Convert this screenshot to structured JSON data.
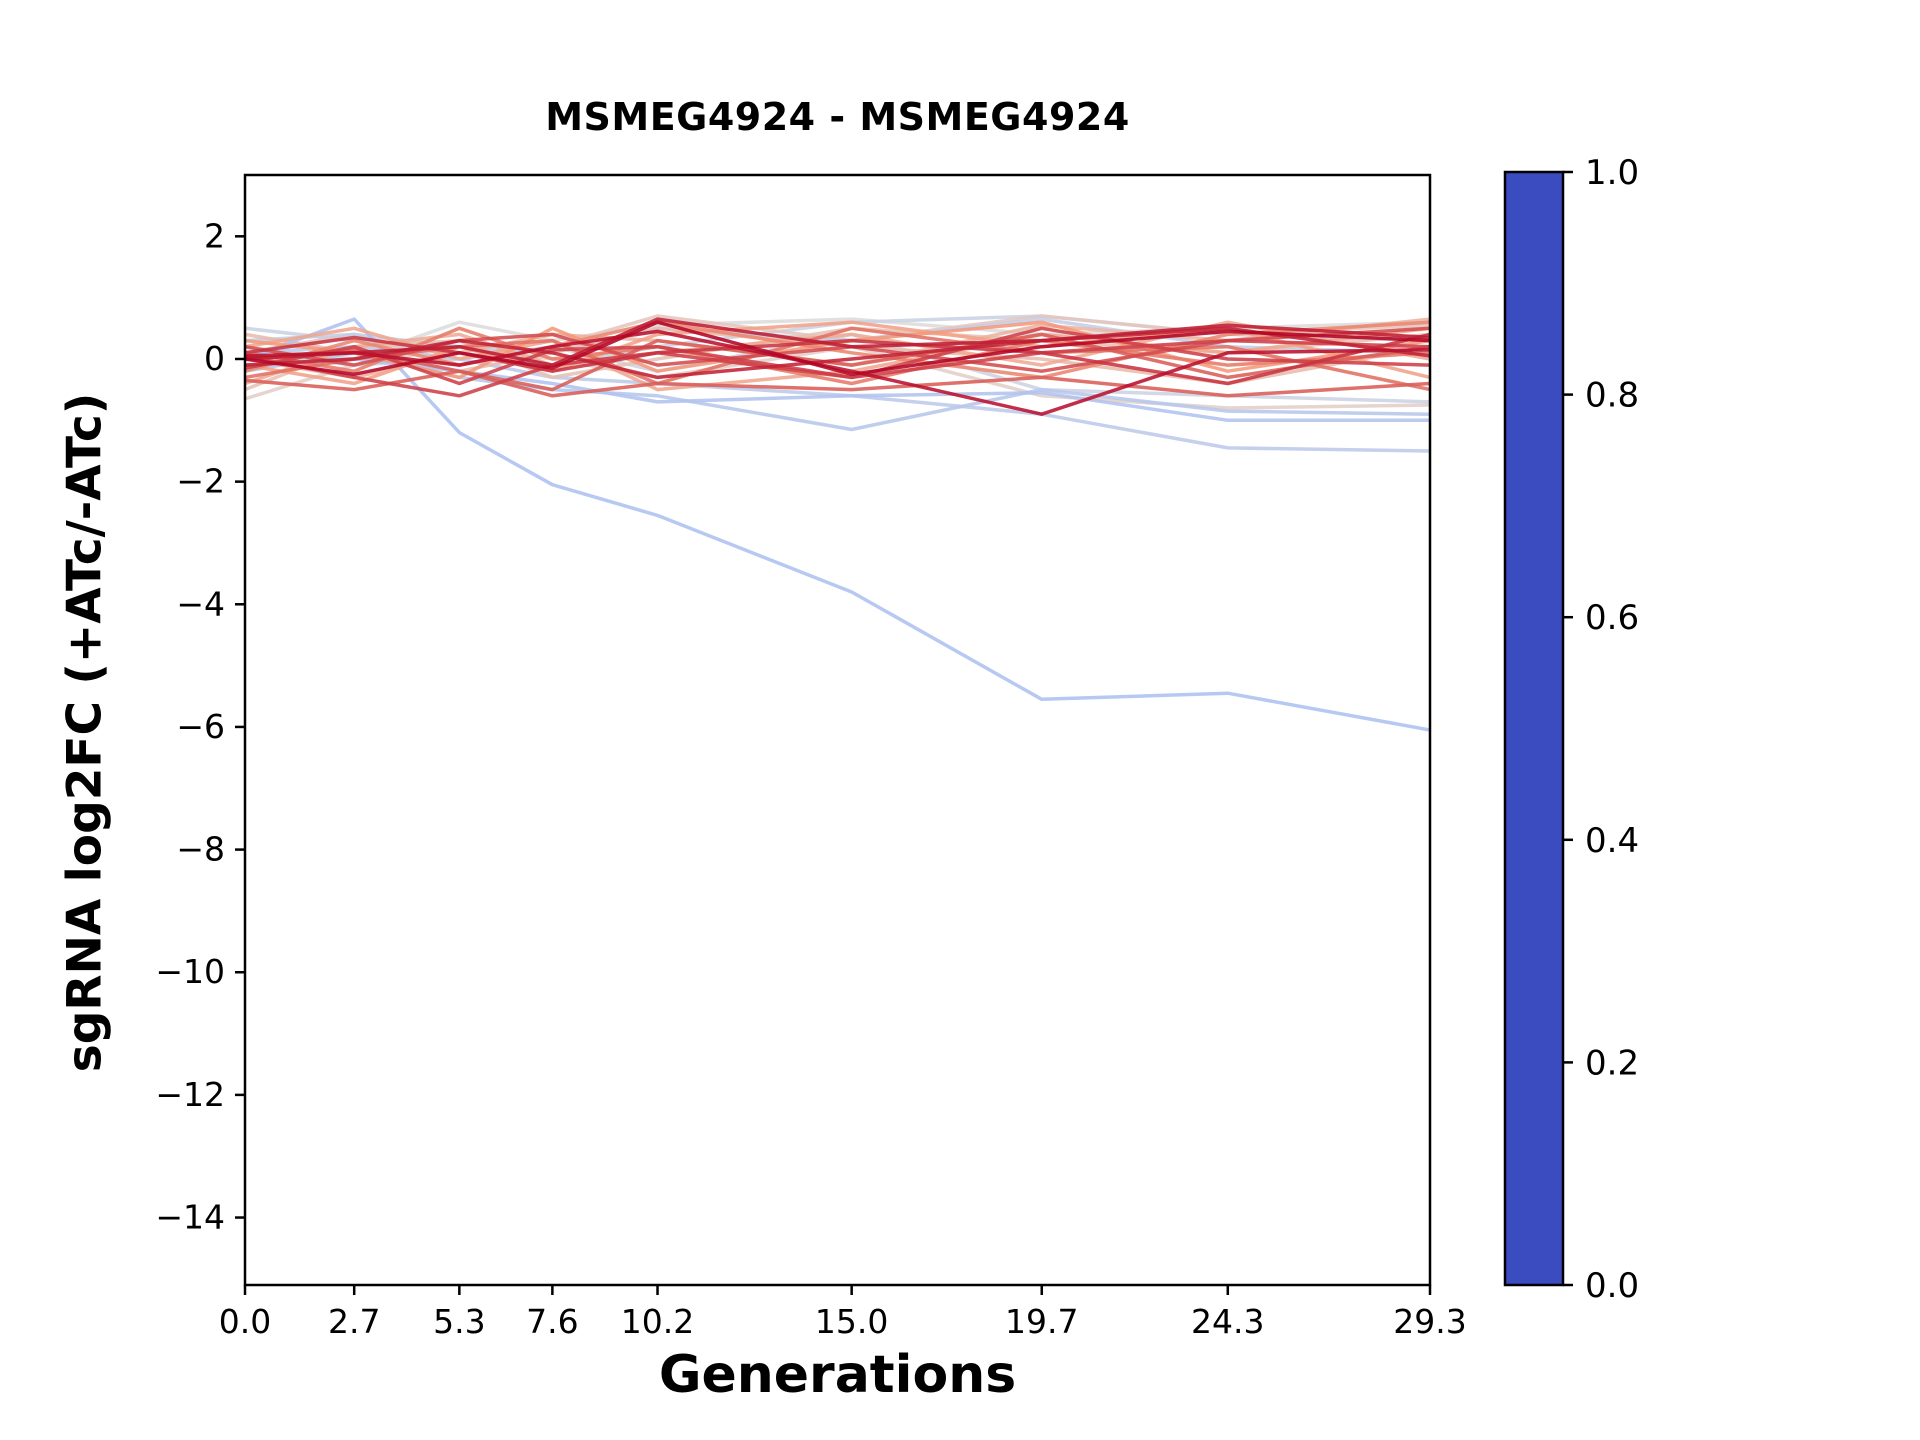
{
  "figure": {
    "title": "MSMEG4924 - MSMEG4924",
    "xlabel": "Generations",
    "ylabel": "sgRNA log2FC (+ATc/-ATc)"
  },
  "chart_data": {
    "type": "line",
    "title": "MSMEG4924 - MSMEG4924",
    "xlabel": "Generations",
    "ylabel": "sgRNA log2FC (+ATc/-ATc)",
    "grid": false,
    "legend": "colorbar-right",
    "x": [
      0.0,
      2.7,
      5.3,
      7.6,
      10.2,
      15.0,
      19.7,
      24.3,
      29.3
    ],
    "xlim": [
      0.0,
      29.3
    ],
    "ylim": [
      -15.1,
      3.0
    ],
    "xticks": {
      "values": [
        0.0,
        2.7,
        5.3,
        7.6,
        10.2,
        15.0,
        19.7,
        24.3,
        29.3
      ],
      "labels": [
        "0.0",
        "2.7",
        "5.3",
        "7.6",
        "10.2",
        "15.0",
        "19.7",
        "24.3",
        "29.3"
      ]
    },
    "yticks": {
      "values": [
        2,
        0,
        -2,
        -4,
        -6,
        -8,
        -10,
        -12,
        -14
      ],
      "labels": [
        "2",
        "0",
        "−2",
        "−4",
        "−6",
        "−8",
        "−10",
        "−12",
        "−14"
      ]
    },
    "colorbar": {
      "orientation": "vertical",
      "range": [
        0.0,
        1.0
      ],
      "ticks": [
        {
          "value": 1.0,
          "label": "1.0"
        },
        {
          "value": 0.8,
          "label": "0.8"
        },
        {
          "value": 0.6,
          "label": "0.6"
        },
        {
          "value": 0.4,
          "label": "0.4"
        },
        {
          "value": 0.2,
          "label": "0.2"
        },
        {
          "value": 0.0,
          "label": "0.0"
        }
      ]
    },
    "colormap": {
      "name": "coolwarm",
      "anchors": [
        [
          0.0,
          "#3B4CC0"
        ],
        [
          0.25,
          "#8DB0FE"
        ],
        [
          0.5,
          "#DDDCDC"
        ],
        [
          0.75,
          "#F4987A"
        ],
        [
          1.0,
          "#B40426"
        ]
      ]
    },
    "style": {
      "line_width": 3.5,
      "line_opacity": 0.88
    },
    "series": [
      {
        "c": 0.35,
        "y": [
          0.0,
          0.65,
          -1.2,
          -2.05,
          -2.55,
          -3.8,
          -5.55,
          -5.45,
          -6.05
        ]
      },
      {
        "c": 0.4,
        "y": [
          0.1,
          0.2,
          0.0,
          -0.3,
          -0.4,
          -0.6,
          -0.9,
          -1.45,
          -1.5
        ]
      },
      {
        "c": 0.38,
        "y": [
          -0.2,
          0.1,
          -0.3,
          -0.5,
          -0.6,
          -1.15,
          -0.5,
          -0.85,
          -0.9
        ]
      },
      {
        "c": 0.42,
        "y": [
          0.3,
          0.4,
          0.2,
          0.1,
          0.5,
          0.3,
          0.65,
          0.2,
          0.1
        ]
      },
      {
        "c": 0.45,
        "y": [
          0.1,
          -0.1,
          0.0,
          0.2,
          -0.2,
          0.4,
          -0.5,
          -0.6,
          -0.7
        ]
      },
      {
        "c": 0.36,
        "y": [
          -0.1,
          0.0,
          -0.2,
          -0.4,
          -0.7,
          -0.6,
          -0.55,
          -1.0,
          -1.0
        ]
      },
      {
        "c": 0.44,
        "y": [
          0.5,
          0.3,
          0.1,
          -0.1,
          0.2,
          0.6,
          0.7,
          0.4,
          0.3
        ]
      },
      {
        "c": 1.0,
        "y": [
          0.0,
          -0.25,
          0.1,
          -0.15,
          0.6,
          -0.25,
          0.2,
          0.45,
          0.3
        ]
      },
      {
        "c": 0.98,
        "y": [
          0.05,
          0.1,
          -0.1,
          0.2,
          0.45,
          -0.2,
          -0.9,
          0.1,
          0.15
        ]
      },
      {
        "c": 0.96,
        "y": [
          0.0,
          0.1,
          0.2,
          -0.1,
          0.65,
          0.2,
          0.3,
          0.55,
          0.35
        ]
      },
      {
        "c": 0.95,
        "y": [
          -0.1,
          0.0,
          0.3,
          0.1,
          -0.3,
          0.0,
          0.3,
          0.5,
          0.05
        ]
      },
      {
        "c": 0.92,
        "y": [
          0.1,
          0.35,
          0.1,
          -0.2,
          0.1,
          0.3,
          0.1,
          -0.4,
          0.4
        ]
      },
      {
        "c": 0.9,
        "y": [
          -0.15,
          0.2,
          -0.4,
          0.15,
          0.2,
          -0.3,
          0.5,
          0.0,
          -0.1
        ]
      },
      {
        "c": 0.9,
        "y": [
          0.05,
          -0.3,
          -0.6,
          -0.1,
          0.1,
          -0.3,
          0.1,
          0.3,
          0.2
        ]
      },
      {
        "c": 0.88,
        "y": [
          0.2,
          -0.1,
          0.3,
          0.4,
          -0.1,
          0.2,
          -0.2,
          0.3,
          0.5
        ]
      },
      {
        "c": 0.85,
        "y": [
          0.0,
          0.15,
          -0.2,
          -0.5,
          0.3,
          -0.1,
          0.4,
          -0.3,
          0.2
        ]
      },
      {
        "c": 0.85,
        "y": [
          -0.35,
          -0.5,
          -0.2,
          -0.6,
          -0.4,
          -0.5,
          -0.3,
          -0.6,
          -0.4
        ]
      },
      {
        "c": 0.82,
        "y": [
          -0.3,
          0.0,
          0.2,
          0.3,
          -0.4,
          0.5,
          0.1,
          0.2,
          -0.5
        ]
      },
      {
        "c": 0.8,
        "y": [
          0.1,
          -0.2,
          0.5,
          0.0,
          0.2,
          -0.4,
          0.3,
          -0.1,
          0.1
        ]
      },
      {
        "c": 0.78,
        "y": [
          -0.2,
          0.3,
          -0.1,
          0.2,
          0.6,
          0.1,
          -0.3,
          0.4,
          0.6
        ]
      },
      {
        "c": 0.75,
        "y": [
          0.3,
          0.1,
          -0.3,
          0.5,
          -0.2,
          0.3,
          0.6,
          -0.2,
          0.3
        ]
      },
      {
        "c": 0.72,
        "y": [
          -0.1,
          -0.4,
          0.2,
          -0.2,
          0.4,
          0.6,
          0.2,
          0.5,
          -0.3
        ]
      },
      {
        "c": 0.7,
        "y": [
          0.2,
          0.5,
          0.0,
          0.3,
          -0.5,
          -0.2,
          0.4,
          0.1,
          0.5
        ]
      },
      {
        "c": 0.68,
        "y": [
          -0.4,
          0.2,
          0.4,
          -0.1,
          0.1,
          0.4,
          -0.1,
          0.6,
          0.0
        ]
      },
      {
        "c": 0.65,
        "y": [
          0.0,
          -0.3,
          0.1,
          0.4,
          0.3,
          -0.1,
          0.55,
          0.3,
          0.65
        ]
      },
      {
        "c": 0.62,
        "y": [
          0.4,
          0.1,
          -0.2,
          0.1,
          0.5,
          0.2,
          0.0,
          -0.4,
          0.2
        ]
      },
      {
        "c": 0.6,
        "y": [
          -0.5,
          0.2,
          0.3,
          -0.3,
          0.0,
          0.5,
          0.3,
          0.1,
          0.4
        ]
      },
      {
        "c": 0.58,
        "y": [
          0.1,
          0.4,
          -0.1,
          0.2,
          0.7,
          0.3,
          0.7,
          0.4,
          0.55
        ]
      },
      {
        "c": 0.55,
        "y": [
          -0.65,
          -0.1,
          0.2,
          0.0,
          -0.3,
          0.2,
          -0.6,
          -0.8,
          -0.75
        ]
      },
      {
        "c": 0.5,
        "y": [
          0.2,
          0.0,
          0.6,
          0.3,
          0.55,
          0.65,
          0.4,
          0.5,
          0.6
        ]
      }
    ]
  }
}
